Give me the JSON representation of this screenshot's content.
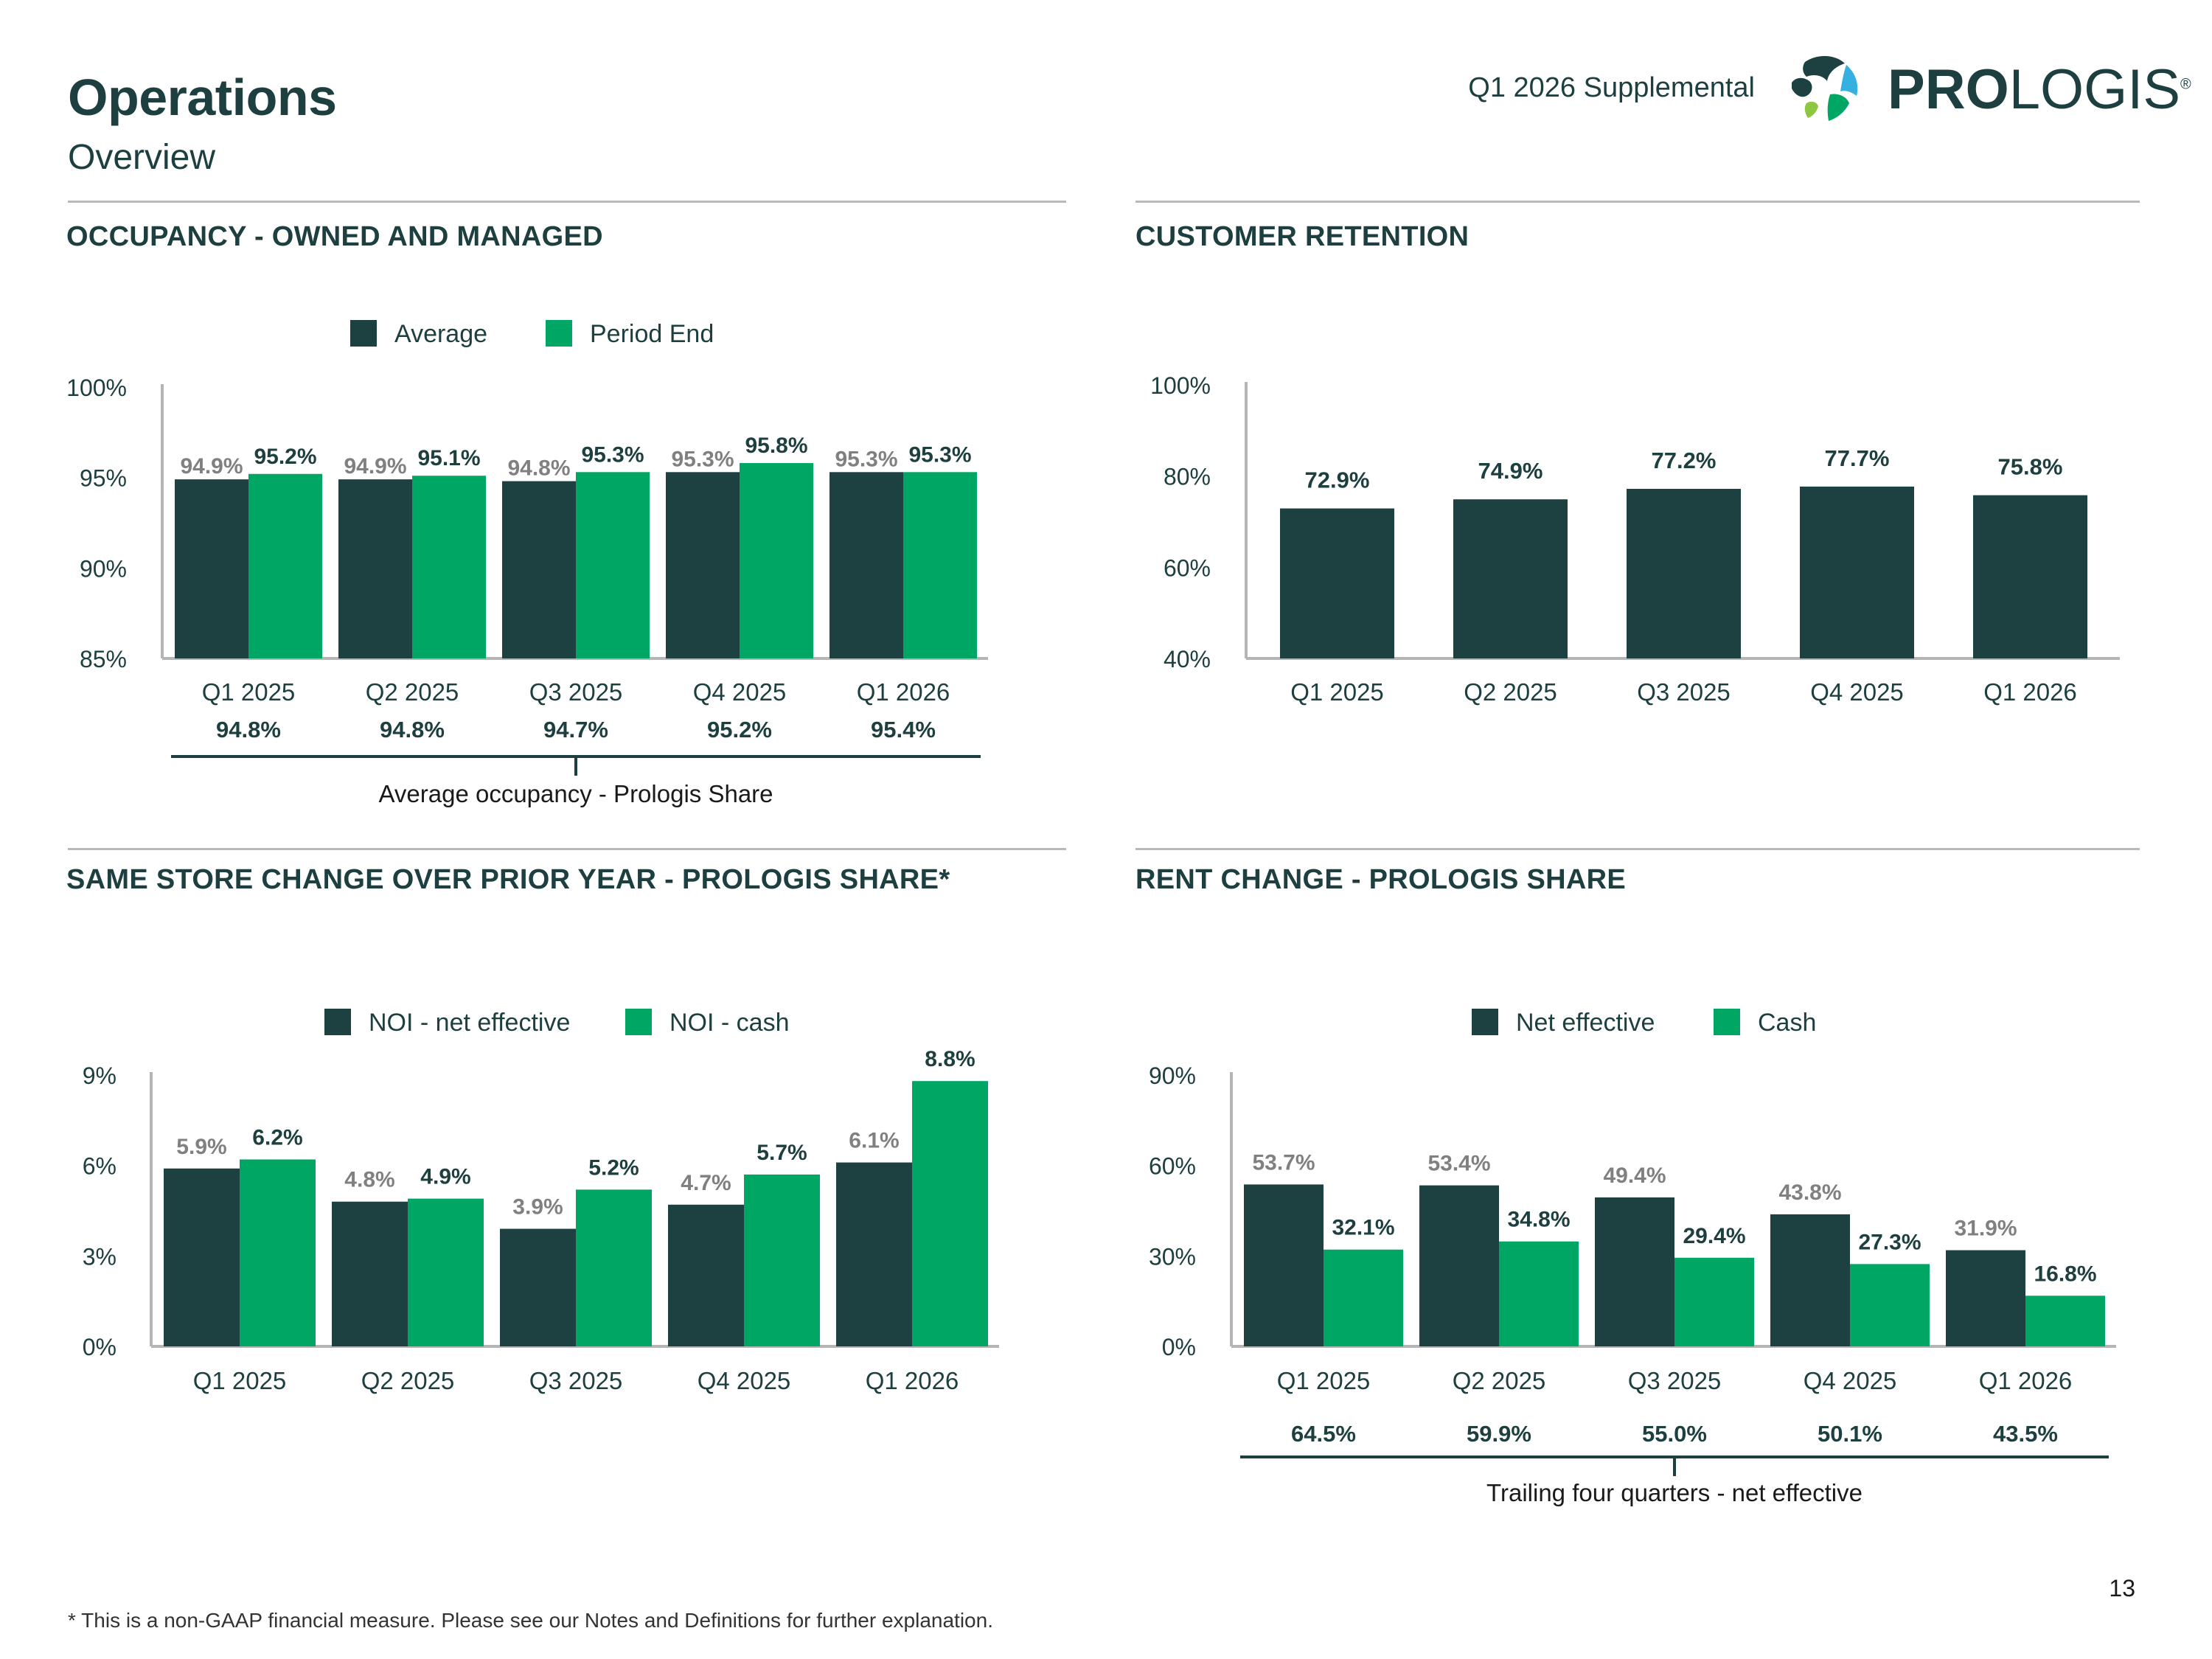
{
  "header": {
    "title": "Operations",
    "subtitle": "Overview",
    "supplemental": "Q1 2026 Supplemental",
    "logo_bold": "PRO",
    "logo_regular": "LOGIS",
    "logo_mark": "®"
  },
  "colors": {
    "dark": "#1d4040",
    "green": "#00a663",
    "axis": "#b5b5b5",
    "text": "#1d3f3f",
    "muted": "#808080"
  },
  "footnote": "* This is a non-GAAP financial measure. Please see our Notes and Definitions for further explanation.",
  "page_number": "13",
  "chart_data": [
    {
      "type": "bar",
      "title": "OCCUPANCY - OWNED AND MANAGED",
      "categories": [
        "Q1 2025",
        "Q2 2025",
        "Q3 2025",
        "Q4 2025",
        "Q1 2026"
      ],
      "series": [
        {
          "name": "Average",
          "values": [
            94.9,
            94.9,
            94.8,
            95.3,
            95.3
          ],
          "labels": [
            "94.9%",
            "94.9%",
            "94.8%",
            "95.3%",
            "95.3%"
          ]
        },
        {
          "name": "Period End",
          "values": [
            95.2,
            95.1,
            95.3,
            95.8,
            95.3
          ],
          "labels": [
            "95.2%",
            "95.1%",
            "95.3%",
            "95.8%",
            "95.3%"
          ]
        }
      ],
      "ylim": [
        85,
        100
      ],
      "yticks": [
        "85%",
        "90%",
        "95%",
        "100%"
      ],
      "ytick_values": [
        85,
        90,
        95,
        100
      ],
      "extra_row": {
        "values": [
          "94.8%",
          "94.8%",
          "94.7%",
          "95.2%",
          "95.4%"
        ],
        "caption": "Average occupancy - Prologis Share"
      }
    },
    {
      "type": "bar",
      "title": "CUSTOMER RETENTION",
      "categories": [
        "Q1 2025",
        "Q2 2025",
        "Q3 2025",
        "Q4 2025",
        "Q1 2026"
      ],
      "series": [
        {
          "name": "Retention",
          "values": [
            72.9,
            74.9,
            77.2,
            77.7,
            75.8
          ],
          "labels": [
            "72.9%",
            "74.9%",
            "77.2%",
            "77.7%",
            "75.8%"
          ]
        }
      ],
      "ylim": [
        40,
        100
      ],
      "yticks": [
        "40%",
        "60%",
        "80%",
        "100%"
      ],
      "ytick_values": [
        40,
        60,
        80,
        100
      ]
    },
    {
      "type": "bar",
      "title": "SAME STORE CHANGE OVER PRIOR YEAR - PROLOGIS SHARE*",
      "categories": [
        "Q1 2025",
        "Q2 2025",
        "Q3 2025",
        "Q4 2025",
        "Q1 2026"
      ],
      "series": [
        {
          "name": "NOI - net effective",
          "values": [
            5.9,
            4.8,
            3.9,
            4.7,
            6.1
          ],
          "labels": [
            "5.9%",
            "4.8%",
            "3.9%",
            "4.7%",
            "6.1%"
          ]
        },
        {
          "name": "NOI - cash",
          "values": [
            6.2,
            4.9,
            5.2,
            5.7,
            8.8
          ],
          "labels": [
            "6.2%",
            "4.9%",
            "5.2%",
            "5.7%",
            "8.8%"
          ]
        }
      ],
      "ylim": [
        0,
        9
      ],
      "yticks": [
        "0%",
        "3%",
        "6%",
        "9%"
      ],
      "ytick_values": [
        0,
        3,
        6,
        9
      ]
    },
    {
      "type": "bar",
      "title": "RENT CHANGE - PROLOGIS SHARE",
      "categories": [
        "Q1 2025",
        "Q2 2025",
        "Q3 2025",
        "Q4 2025",
        "Q1 2026"
      ],
      "series": [
        {
          "name": "Net effective",
          "values": [
            53.7,
            53.4,
            49.4,
            43.8,
            31.9
          ],
          "labels": [
            "53.7%",
            "53.4%",
            "49.4%",
            "43.8%",
            "31.9%"
          ]
        },
        {
          "name": "Cash",
          "values": [
            32.1,
            34.8,
            29.4,
            27.3,
            16.8
          ],
          "labels": [
            "32.1%",
            "34.8%",
            "29.4%",
            "27.3%",
            "16.8%"
          ]
        }
      ],
      "ylim": [
        0,
        90
      ],
      "yticks": [
        "0%",
        "30%",
        "60%",
        "90%"
      ],
      "ytick_values": [
        0,
        30,
        60,
        90
      ],
      "extra_row": {
        "values": [
          "64.5%",
          "59.9%",
          "55.0%",
          "50.1%",
          "43.5%"
        ],
        "caption": "Trailing four quarters - net effective"
      }
    }
  ]
}
